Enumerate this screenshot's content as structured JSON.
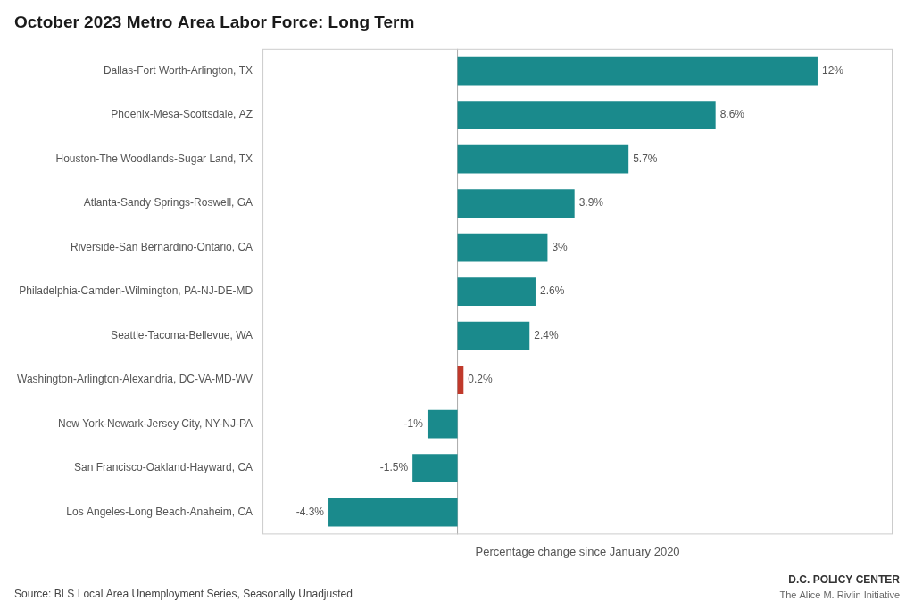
{
  "chart_data": {
    "type": "bar",
    "orientation": "horizontal",
    "title": "October 2023 Metro Area Labor Force: Long Term",
    "xlabel": "Percentage change since January 2020",
    "categories": [
      "Dallas-Fort Worth-Arlington, TX",
      "Phoenix-Mesa-Scottsdale, AZ",
      "Houston-The Woodlands-Sugar Land, TX",
      "Atlanta-Sandy Springs-Roswell, GA",
      "Riverside-San Bernardino-Ontario, CA",
      "Philadelphia-Camden-Wilmington, PA-NJ-DE-MD",
      "Seattle-Tacoma-Bellevue, WA",
      "Washington-Arlington-Alexandria, DC-VA-MD-WV",
      "New York-Newark-Jersey City, NY-NJ-PA",
      "San Francisco-Oakland-Hayward, CA",
      "Los Angeles-Long Beach-Anaheim, CA"
    ],
    "values": [
      12.0,
      8.6,
      5.7,
      3.9,
      3.0,
      2.6,
      2.4,
      0.2,
      -1.0,
      -1.5,
      -4.3
    ],
    "value_labels": [
      "12%",
      "8.6%",
      "5.7%",
      "3.9%",
      "3%",
      "2.6%",
      "2.4%",
      "0.2%",
      "-1%",
      "-1.5%",
      "-4.3%"
    ],
    "data_labels": true,
    "colors": [
      "#1a8a8c",
      "#1a8a8c",
      "#1a8a8c",
      "#1a8a8c",
      "#1a8a8c",
      "#1a8a8c",
      "#1a8a8c",
      "#c0392b",
      "#1a8a8c",
      "#1a8a8c",
      "#1a8a8c"
    ],
    "xlim": [
      -6.5,
      14.5
    ],
    "tick_labels": "y",
    "grid": false,
    "annotations": [
      "Source: BLS Local Area Unemployment Series, Seasonally Unadjusted",
      "D.C. POLICY CENTER",
      "The Alice M. Rivlin Initiative"
    ]
  }
}
